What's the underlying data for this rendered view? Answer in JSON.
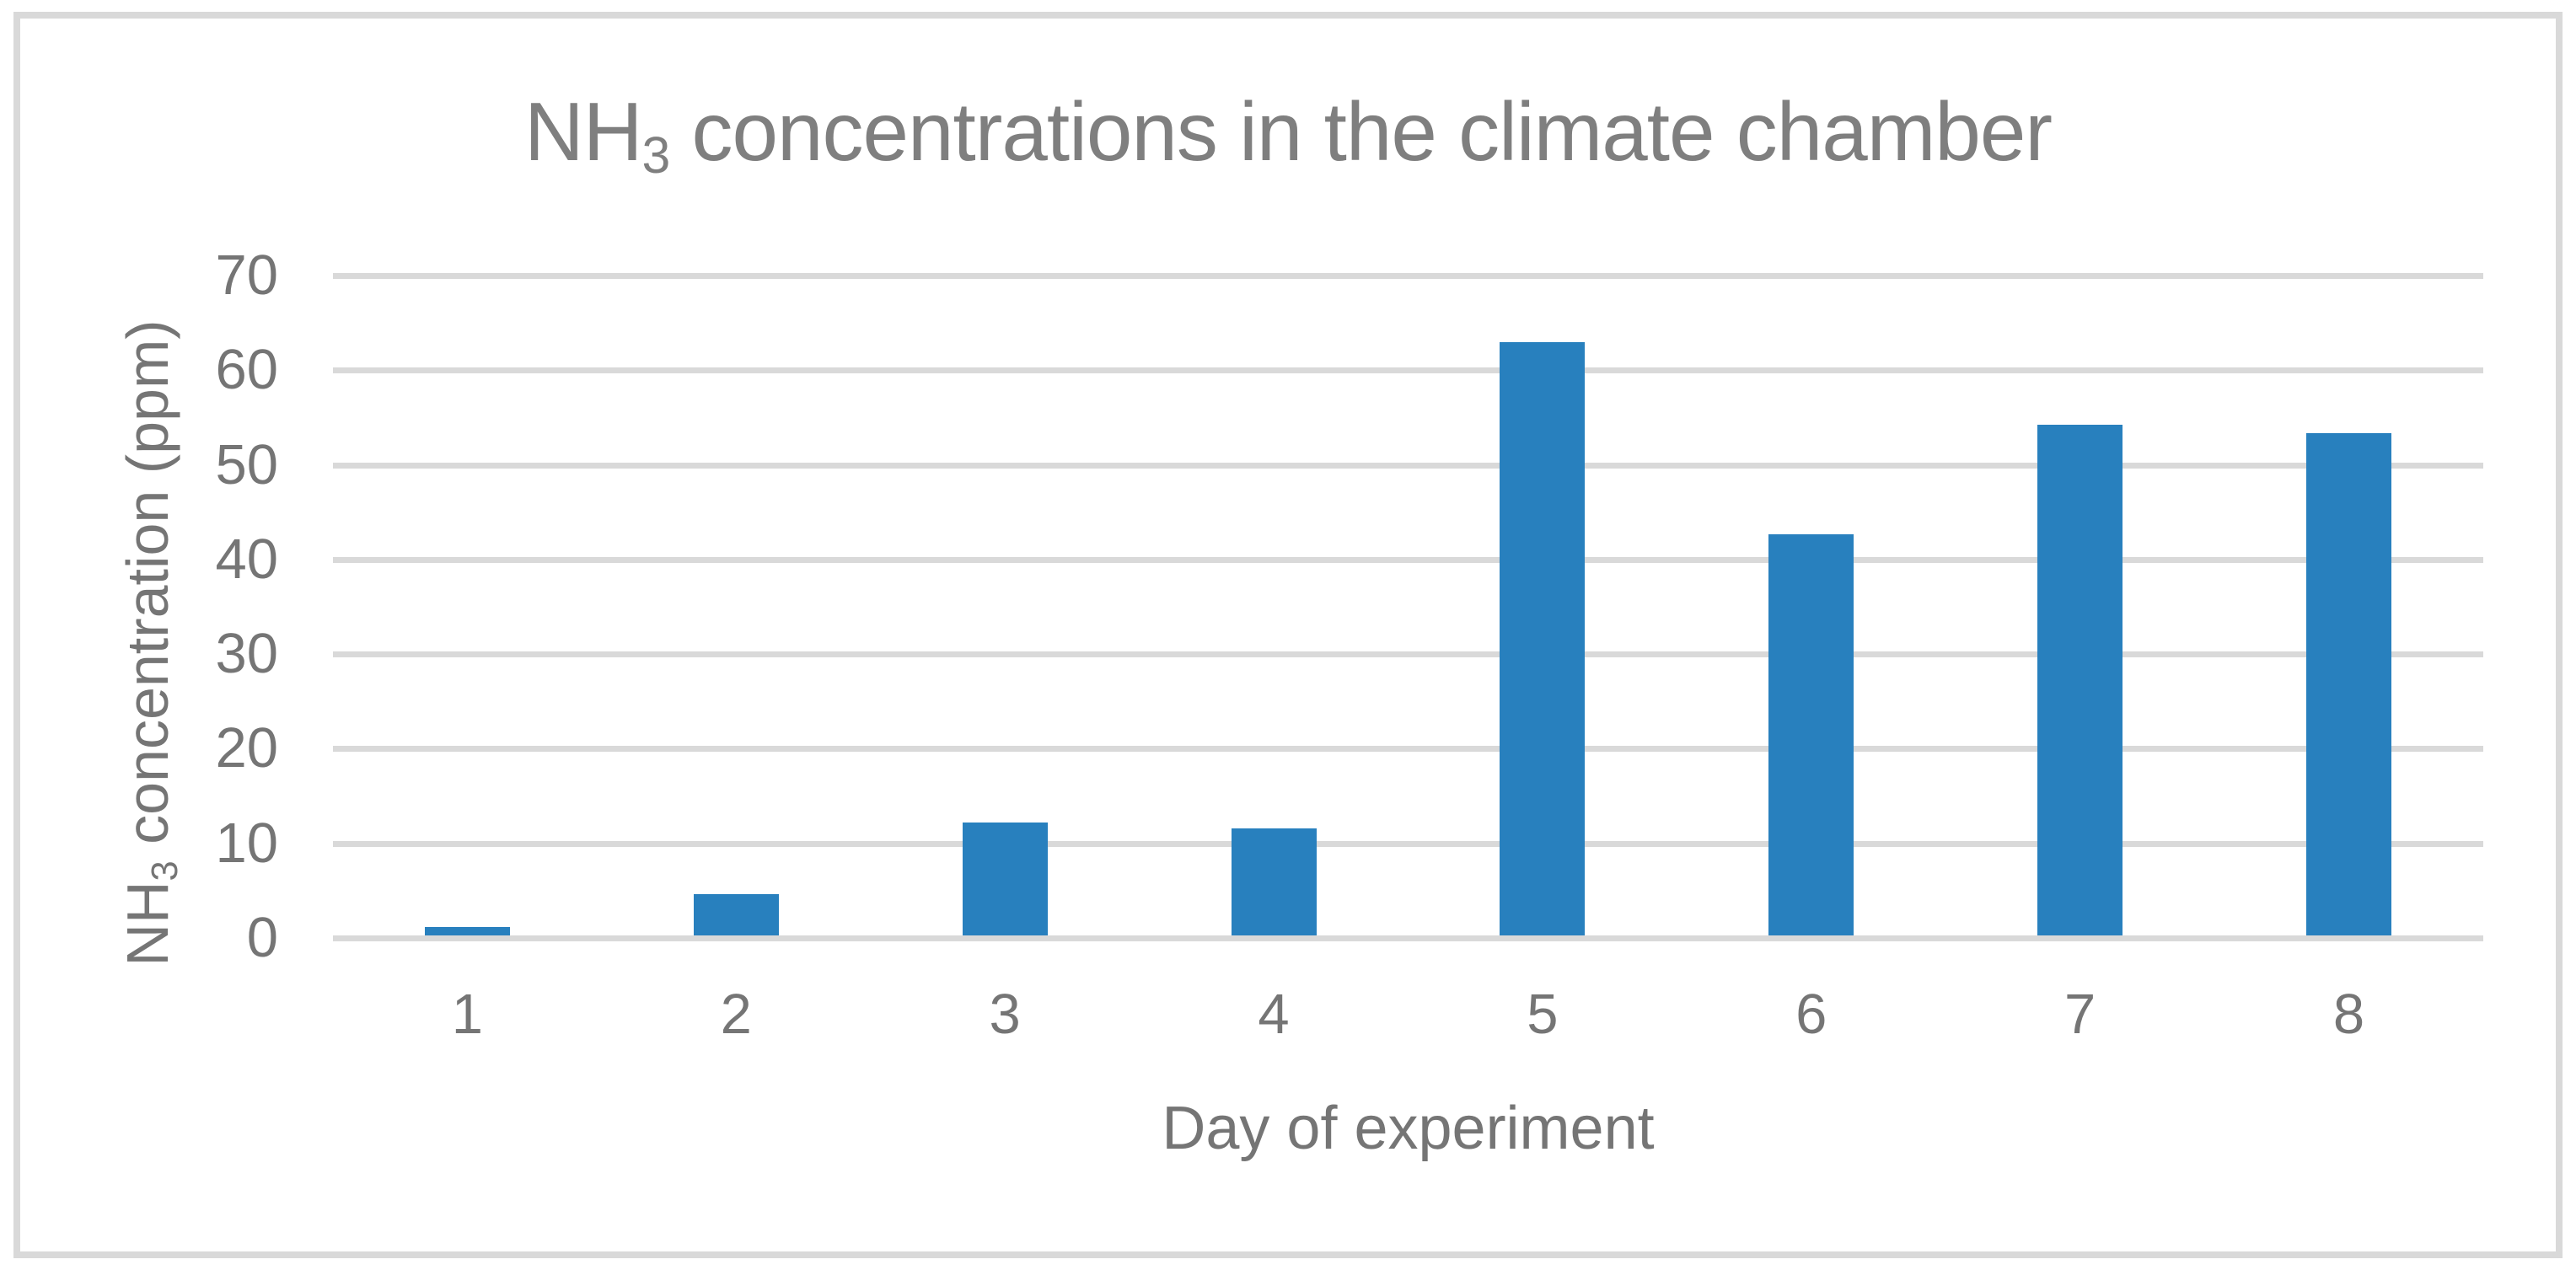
{
  "chart_data": {
    "type": "bar",
    "title": "NH3 concentrations in the climate chamber",
    "title_parts": {
      "prefix": "NH",
      "subscript": "3",
      "rest": " concentrations in the climate chamber"
    },
    "categories": [
      "1",
      "2",
      "3",
      "4",
      "5",
      "6",
      "7",
      "8"
    ],
    "values": [
      0.9,
      4.4,
      11.9,
      11.3,
      62.7,
      42.4,
      54.0,
      53.1
    ],
    "series_name": "NH3 concentration",
    "xlabel": "Day of experiment",
    "ylabel": "NH3 concentration (ppm)",
    "ylabel_parts": {
      "prefix": "NH",
      "subscript": "3",
      "rest": " concentration (ppm)"
    },
    "ylim": [
      0,
      70
    ],
    "yticks": [
      0,
      10,
      20,
      30,
      40,
      50,
      60,
      70
    ],
    "grid": true,
    "legend": "none",
    "colors": {
      "bar": "#2880BE",
      "gridline": "#D9D9D9",
      "tick_label": "#757575",
      "axis_title": "#757575",
      "title": "#7F7F7F",
      "frame_border": "#D9D9D9",
      "background": "#FFFFFF"
    }
  }
}
